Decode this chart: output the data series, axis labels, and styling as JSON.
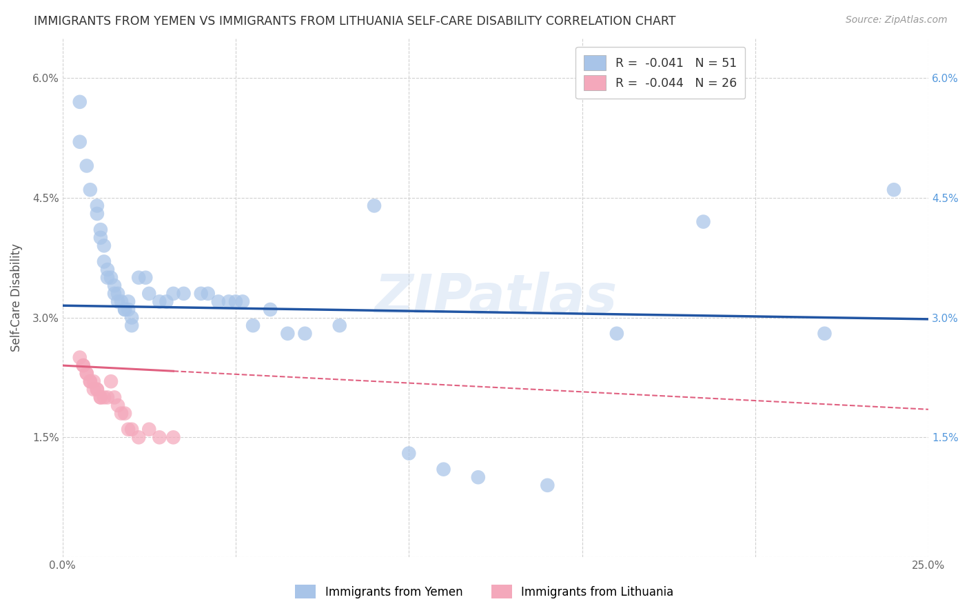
{
  "title": "IMMIGRANTS FROM YEMEN VS IMMIGRANTS FROM LITHUANIA SELF-CARE DISABILITY CORRELATION CHART",
  "source": "Source: ZipAtlas.com",
  "ylabel": "Self-Care Disability",
  "xlim": [
    0.0,
    0.25
  ],
  "ylim": [
    0.0,
    0.065
  ],
  "yticks": [
    0.0,
    0.015,
    0.03,
    0.045,
    0.06
  ],
  "ytick_labels_left": [
    "",
    "1.5%",
    "3.0%",
    "4.5%",
    "6.0%"
  ],
  "ytick_labels_right": [
    "",
    "1.5%",
    "3.0%",
    "4.5%",
    "6.0%"
  ],
  "xticks": [
    0.0,
    0.05,
    0.1,
    0.15,
    0.2,
    0.25
  ],
  "xtick_labels": [
    "0.0%",
    "",
    "",
    "",
    "",
    "25.0%"
  ],
  "legend_R1": "-0.041",
  "legend_N1": "51",
  "legend_R2": "-0.044",
  "legend_N2": "26",
  "label1": "Immigrants from Yemen",
  "label2": "Immigrants from Lithuania",
  "color1": "#a8c4e8",
  "color2": "#f4a8bb",
  "trendline1_color": "#2155a3",
  "trendline2_color": "#e06080",
  "background_color": "#ffffff",
  "grid_color": "#d0d0d0",
  "title_color": "#333333",
  "watermark": "ZIPatlas",
  "yemen_x": [
    0.005,
    0.005,
    0.007,
    0.008,
    0.01,
    0.01,
    0.011,
    0.011,
    0.012,
    0.012,
    0.013,
    0.013,
    0.014,
    0.015,
    0.015,
    0.016,
    0.016,
    0.017,
    0.018,
    0.018,
    0.019,
    0.019,
    0.02,
    0.02,
    0.022,
    0.024,
    0.025,
    0.028,
    0.03,
    0.032,
    0.035,
    0.04,
    0.042,
    0.045,
    0.048,
    0.05,
    0.052,
    0.055,
    0.06,
    0.065,
    0.07,
    0.08,
    0.09,
    0.1,
    0.11,
    0.12,
    0.14,
    0.16,
    0.185,
    0.22,
    0.24
  ],
  "yemen_y": [
    0.057,
    0.052,
    0.049,
    0.046,
    0.044,
    0.043,
    0.041,
    0.04,
    0.039,
    0.037,
    0.036,
    0.035,
    0.035,
    0.034,
    0.033,
    0.033,
    0.032,
    0.032,
    0.031,
    0.031,
    0.032,
    0.031,
    0.03,
    0.029,
    0.035,
    0.035,
    0.033,
    0.032,
    0.032,
    0.033,
    0.033,
    0.033,
    0.033,
    0.032,
    0.032,
    0.032,
    0.032,
    0.029,
    0.031,
    0.028,
    0.028,
    0.029,
    0.044,
    0.013,
    0.011,
    0.01,
    0.009,
    0.028,
    0.042,
    0.028,
    0.046
  ],
  "lithuania_x": [
    0.005,
    0.006,
    0.006,
    0.007,
    0.007,
    0.008,
    0.008,
    0.009,
    0.009,
    0.01,
    0.01,
    0.011,
    0.011,
    0.012,
    0.013,
    0.014,
    0.015,
    0.016,
    0.017,
    0.018,
    0.019,
    0.02,
    0.022,
    0.025,
    0.028,
    0.032
  ],
  "lithuania_y": [
    0.025,
    0.024,
    0.024,
    0.023,
    0.023,
    0.022,
    0.022,
    0.022,
    0.021,
    0.021,
    0.021,
    0.02,
    0.02,
    0.02,
    0.02,
    0.022,
    0.02,
    0.019,
    0.018,
    0.018,
    0.016,
    0.016,
    0.015,
    0.016,
    0.015,
    0.015
  ],
  "trendline1_x0": 0.0,
  "trendline1_x1": 0.25,
  "trendline1_y0": 0.0315,
  "trendline1_y1": 0.0298,
  "trendline2_x0": 0.0,
  "trendline2_x1": 0.25,
  "trendline2_y0": 0.024,
  "trendline2_y1": 0.0185,
  "trendline2_solid_end": 0.032
}
